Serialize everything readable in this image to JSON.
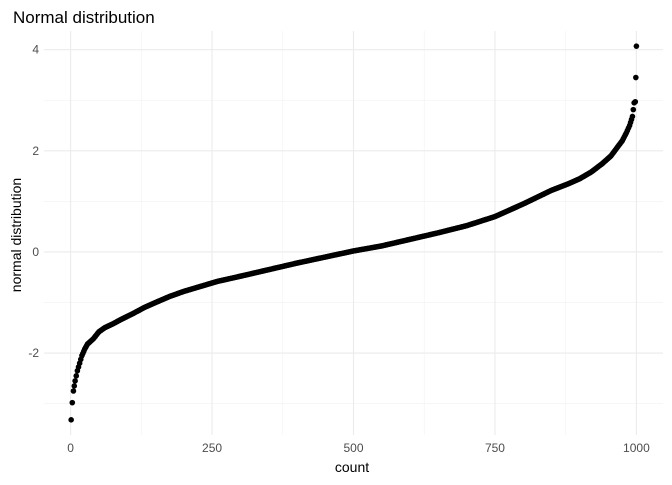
{
  "chart_data": {
    "type": "scatter",
    "title": "Normal distribution",
    "xlabel": "count",
    "ylabel": "normal distribution",
    "xlim": [
      -47,
      1047
    ],
    "ylim": [
      -3.62,
      4.37
    ],
    "x_ticks": [
      0,
      250,
      500,
      750,
      1000
    ],
    "x_tick_labels": [
      "0",
      "250",
      "500",
      "750",
      "1000"
    ],
    "y_ticks": [
      -2,
      0,
      2,
      4
    ],
    "y_tick_labels": [
      "-2",
      "0",
      "2",
      "4"
    ],
    "grid": true,
    "legend": "none",
    "point_color": "#000000",
    "series": [
      {
        "x": [
          1,
          3,
          5,
          8,
          12,
          16,
          20,
          25,
          30,
          40,
          50,
          60,
          75,
          90,
          110,
          130,
          150,
          175,
          200,
          230,
          260,
          300,
          350,
          400,
          450,
          500,
          550,
          600,
          650,
          700,
          750,
          800,
          850,
          880,
          900,
          920,
          940,
          955,
          965,
          975,
          982,
          988,
          993,
          996,
          998,
          999,
          1000
        ],
        "y": [
          -3.32,
          -2.98,
          -2.75,
          -2.55,
          -2.35,
          -2.2,
          -2.05,
          -1.92,
          -1.82,
          -1.72,
          -1.58,
          -1.5,
          -1.42,
          -1.33,
          -1.22,
          -1.1,
          -1.0,
          -0.88,
          -0.78,
          -0.68,
          -0.58,
          -0.48,
          -0.35,
          -0.22,
          -0.1,
          0.02,
          0.12,
          0.25,
          0.38,
          0.52,
          0.7,
          0.95,
          1.22,
          1.35,
          1.45,
          1.58,
          1.75,
          1.9,
          2.05,
          2.2,
          2.35,
          2.5,
          2.68,
          2.95,
          2.97,
          3.45,
          4.07
        ]
      }
    ]
  }
}
